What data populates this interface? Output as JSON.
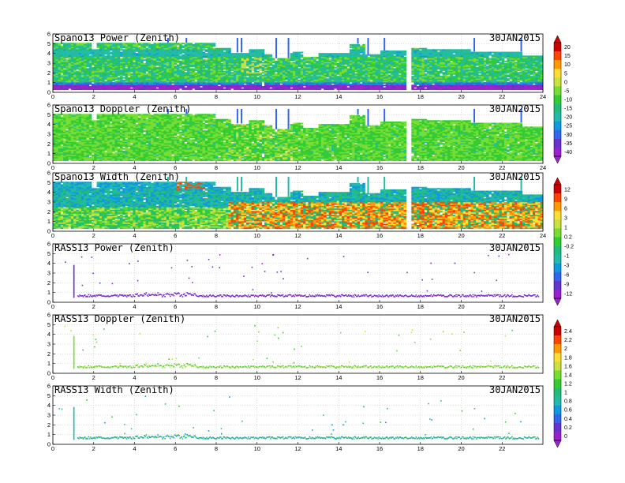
{
  "chart_data": [
    {
      "type": "heatmap",
      "title": "Spano13 Power (Zenith)",
      "date": "30JAN2015",
      "variable": "power",
      "x_ticks": [
        "0",
        "2",
        "4",
        "6",
        "8",
        "10",
        "12",
        "14",
        "16",
        "18",
        "20",
        "22",
        "24"
      ],
      "y_ticks": [
        "0",
        "1",
        "2",
        "3",
        "4",
        "5",
        "6"
      ],
      "xlim": [
        0,
        24
      ],
      "ylim": [
        0,
        6
      ]
    },
    {
      "type": "heatmap",
      "title": "Spano13 Doppler (Zenith)",
      "date": "30JAN2015",
      "variable": "doppler",
      "x_ticks": [
        "0",
        "2",
        "4",
        "6",
        "8",
        "10",
        "12",
        "14",
        "16",
        "18",
        "20",
        "22",
        "24"
      ],
      "y_ticks": [
        "0",
        "1",
        "2",
        "3",
        "4",
        "5",
        "6"
      ],
      "xlim": [
        0,
        24
      ],
      "ylim": [
        0,
        6
      ]
    },
    {
      "type": "heatmap",
      "title": "Spano13 Width (Zenith)",
      "date": "30JAN2015",
      "variable": "width",
      "x_ticks": [
        "0",
        "2",
        "4",
        "6",
        "8",
        "10",
        "12",
        "14",
        "16",
        "18",
        "20",
        "22",
        "24"
      ],
      "y_ticks": [
        "0",
        "1",
        "2",
        "3",
        "4",
        "5",
        "6"
      ],
      "xlim": [
        0,
        24
      ],
      "ylim": [
        0,
        6
      ]
    },
    {
      "type": "scatter",
      "title": "RASS13 Power (Zenith)",
      "date": "30JAN2015",
      "variable": "rpower",
      "x_ticks": [
        "0",
        "2",
        "4",
        "6",
        "8",
        "10",
        "12",
        "14",
        "16",
        "18",
        "20",
        "22"
      ],
      "y_ticks": [
        "0",
        "1",
        "2",
        "3",
        "4",
        "5",
        "6"
      ],
      "xlim": [
        0,
        24
      ],
      "ylim": [
        0,
        6
      ]
    },
    {
      "type": "scatter",
      "title": "RASS13 Doppler (Zenith)",
      "date": "30JAN2015",
      "variable": "rdoppler",
      "x_ticks": [
        "0",
        "2",
        "4",
        "6",
        "8",
        "10",
        "12",
        "14",
        "16",
        "18",
        "20",
        "22"
      ],
      "y_ticks": [
        "0",
        "1",
        "2",
        "3",
        "4",
        "5",
        "6"
      ],
      "xlim": [
        0,
        24
      ],
      "ylim": [
        0,
        6
      ]
    },
    {
      "type": "scatter",
      "title": "RASS13 Width (Zenith)",
      "date": "30JAN2015",
      "variable": "rwidth",
      "x_ticks": [
        "0",
        "2",
        "4",
        "6",
        "8",
        "10",
        "12",
        "14",
        "16",
        "18",
        "20",
        "22"
      ],
      "y_ticks": [
        "0",
        "1",
        "2",
        "3",
        "4",
        "5",
        "6"
      ],
      "xlim": [
        0,
        24
      ],
      "ylim": [
        0,
        6
      ]
    }
  ],
  "colorbars": [
    {
      "labels": [
        "20",
        "15",
        "10",
        "5",
        "0",
        "-5",
        "-10",
        "-15",
        "-20",
        "-25",
        "-30",
        "-35",
        "-40"
      ],
      "colors": [
        "#cc0000",
        "#ff4400",
        "#ff9900",
        "#ffdd33",
        "#c8e040",
        "#77dd33",
        "#33cc33",
        "#22bb77",
        "#22bbaa",
        "#1199dd",
        "#3366ee",
        "#6633cc",
        "#9922cc"
      ]
    },
    {
      "labels": [
        "12",
        "9",
        "6",
        "3",
        "1",
        "0.2",
        "-0.2",
        "-1",
        "-3",
        "-6",
        "-9",
        "-12"
      ],
      "colors": [
        "#cc0000",
        "#ff4400",
        "#ff9900",
        "#ffdd33",
        "#c8e040",
        "#77dd33",
        "#33cc33",
        "#22bb77",
        "#22bbaa",
        "#1199dd",
        "#3366ee",
        "#6633cc",
        "#9922cc"
      ]
    },
    {
      "labels": [
        "2.4",
        "2.2",
        "2",
        "1.8",
        "1.6",
        "1.4",
        "1.2",
        "1",
        "0.8",
        "0.6",
        "0.4",
        "0.2",
        "0"
      ],
      "colors": [
        "#cc0000",
        "#ff4400",
        "#ff9900",
        "#ffdd33",
        "#c8e040",
        "#77dd33",
        "#33cc33",
        "#22bb77",
        "#22bbaa",
        "#1199dd",
        "#3366ee",
        "#6633cc",
        "#9922cc"
      ]
    }
  ]
}
